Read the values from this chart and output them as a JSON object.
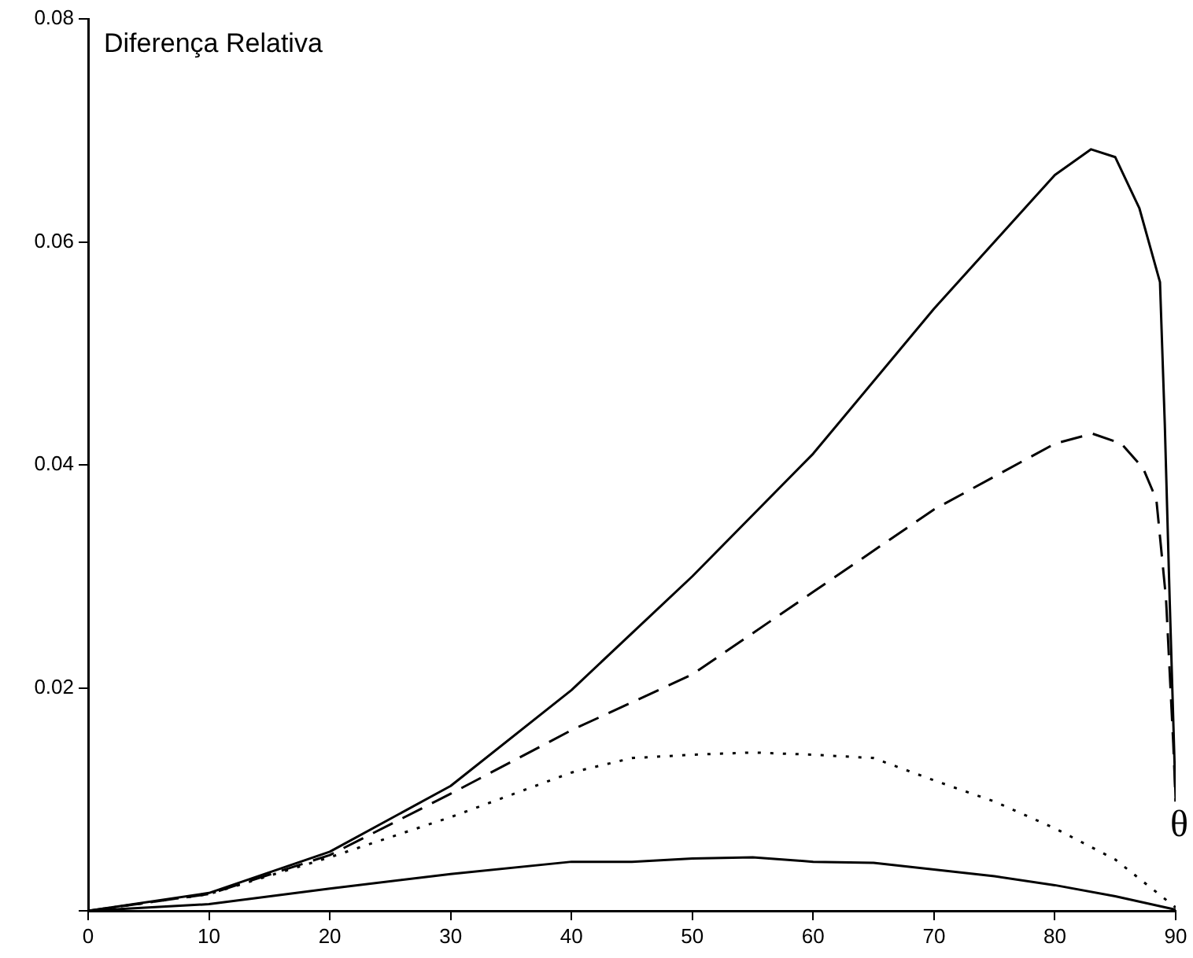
{
  "chart_data": {
    "type": "line",
    "xlabel": "θ",
    "ylabel": "Diferença Relativa",
    "xlim": [
      0,
      90
    ],
    "ylim": [
      0,
      0.08
    ],
    "xticks": [
      0,
      10,
      20,
      30,
      40,
      50,
      60,
      70,
      80,
      90
    ],
    "yticks": [
      {
        "value": 0,
        "label": null
      },
      0.02,
      0.04,
      0.06,
      0.08
    ],
    "grid": false,
    "legend": false,
    "marker": "none",
    "series": [
      {
        "color": "#000000",
        "line_style": "solid",
        "x": [
          0,
          10,
          20,
          30,
          40,
          50,
          60,
          70,
          80,
          83,
          85,
          87,
          88.7,
          89.1,
          89.5,
          90
        ],
        "values": [
          0,
          0.0016,
          0.0053,
          0.0112,
          0.0198,
          0.03,
          0.041,
          0.054,
          0.066,
          0.0683,
          0.0676,
          0.063,
          0.0564,
          0.0436,
          0.028,
          0.0098
        ]
      },
      {
        "color": "#000000",
        "line_style": "dashed",
        "x": [
          0,
          10,
          20,
          30,
          40,
          50,
          60,
          70,
          80,
          83.1,
          85.5,
          87.3,
          88.4,
          89.2,
          89.8,
          90
        ],
        "values": [
          0,
          0.0015,
          0.005,
          0.0105,
          0.0162,
          0.0212,
          0.0286,
          0.036,
          0.0419,
          0.0428,
          0.0419,
          0.0397,
          0.0369,
          0.028,
          0.015,
          0.0098
        ]
      },
      {
        "color": "#000000",
        "line_style": "dotted",
        "x": [
          0,
          10,
          20,
          30,
          40,
          45,
          50,
          55,
          60,
          65,
          70,
          75,
          80,
          85,
          90
        ],
        "values": [
          0,
          0.0015,
          0.0048,
          0.0084,
          0.0124,
          0.0137,
          0.014,
          0.0142,
          0.014,
          0.0137,
          0.0117,
          0.0098,
          0.0074,
          0.0046,
          0.0003
        ]
      },
      {
        "color": "#000000",
        "line_style": "solid",
        "x": [
          0,
          10,
          20,
          30,
          40,
          45,
          50,
          55,
          60,
          65,
          70,
          75,
          80,
          85,
          90
        ],
        "values": [
          0,
          0.0006,
          0.002,
          0.0033,
          0.0044,
          0.0044,
          0.0047,
          0.0048,
          0.0044,
          0.0043,
          0.0037,
          0.0031,
          0.0023,
          0.0013,
          0.0001
        ]
      }
    ]
  }
}
